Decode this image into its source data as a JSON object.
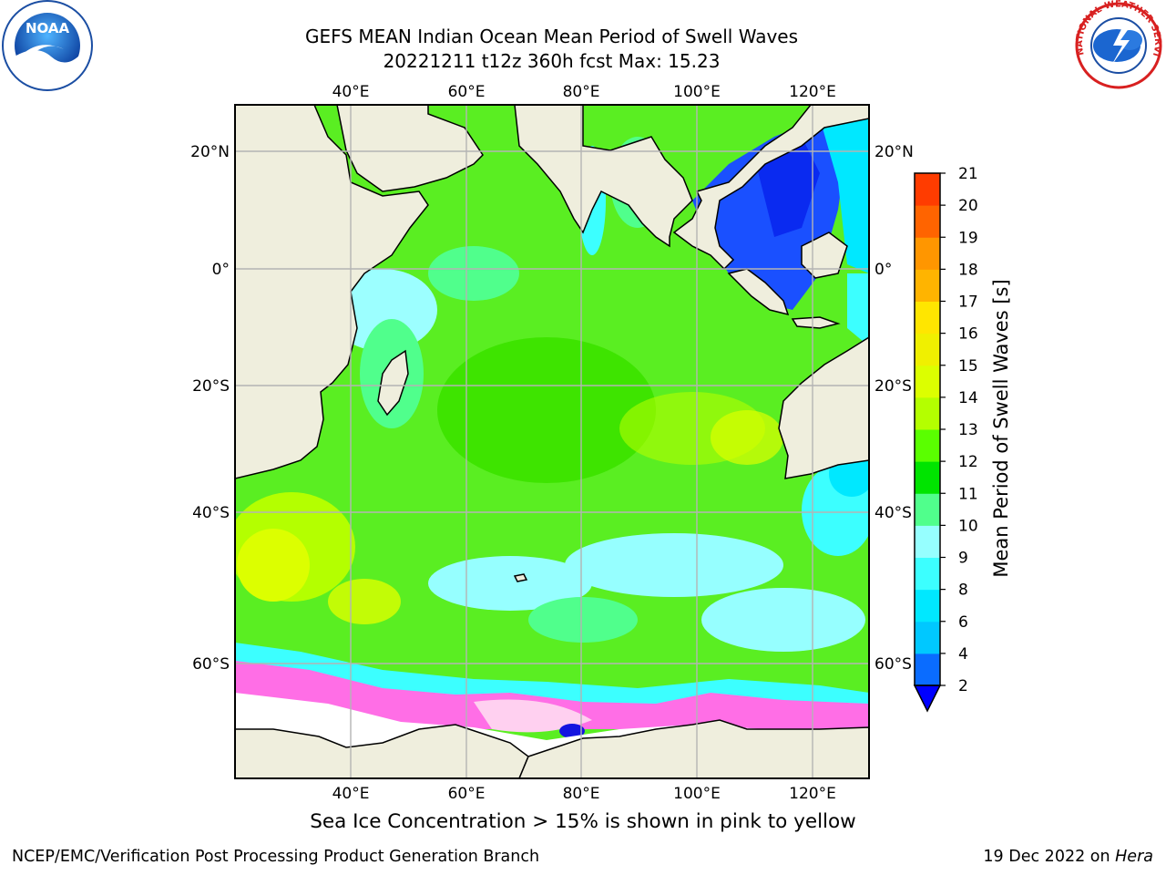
{
  "header": {
    "title_line1": "GEFS MEAN Indian Ocean Mean Period of Swell Waves",
    "title_line2": "20221211 t12z 360h fcst   Max: 15.23"
  },
  "logos": {
    "left": "noaa-logo",
    "right": "national-weather-service-logo",
    "left_text": "NOAA",
    "right_text": "NATIONAL WEATHER SERVICE"
  },
  "map": {
    "lon_labels": [
      "40°E",
      "60°E",
      "80°E",
      "100°E",
      "120°E"
    ],
    "lat_labels": [
      "20°N",
      "0°",
      "20°S",
      "40°S",
      "60°S"
    ],
    "land_color": "#efeedd",
    "grid_color": "#b4b4b4"
  },
  "colorbar": {
    "label": "Mean Period of Swell Waves [s]",
    "ticks": [
      "2",
      "4",
      "6",
      "8",
      "9",
      "10",
      "11",
      "12",
      "13",
      "14",
      "15",
      "16",
      "17",
      "18",
      "19",
      "20",
      "21"
    ],
    "colors": [
      "#0a6cff",
      "#00c8ff",
      "#00e8ff",
      "#3cffff",
      "#96ffff",
      "#50ff8c",
      "#00e400",
      "#5aff00",
      "#b4ff00",
      "#dcff00",
      "#f0f000",
      "#ffe600",
      "#ffb400",
      "#ff9600",
      "#ff6400",
      "#ff3c00",
      "#ff0000"
    ],
    "extend_color": "#0000ff"
  },
  "footer": {
    "note": "Sea Ice Concentration > 15% is shown in pink to yellow",
    "left": "NCEP/EMC/Verification Post Processing Product Generation Branch",
    "right_prefix": "19 Dec 2022 on ",
    "right_host": "Hera"
  }
}
